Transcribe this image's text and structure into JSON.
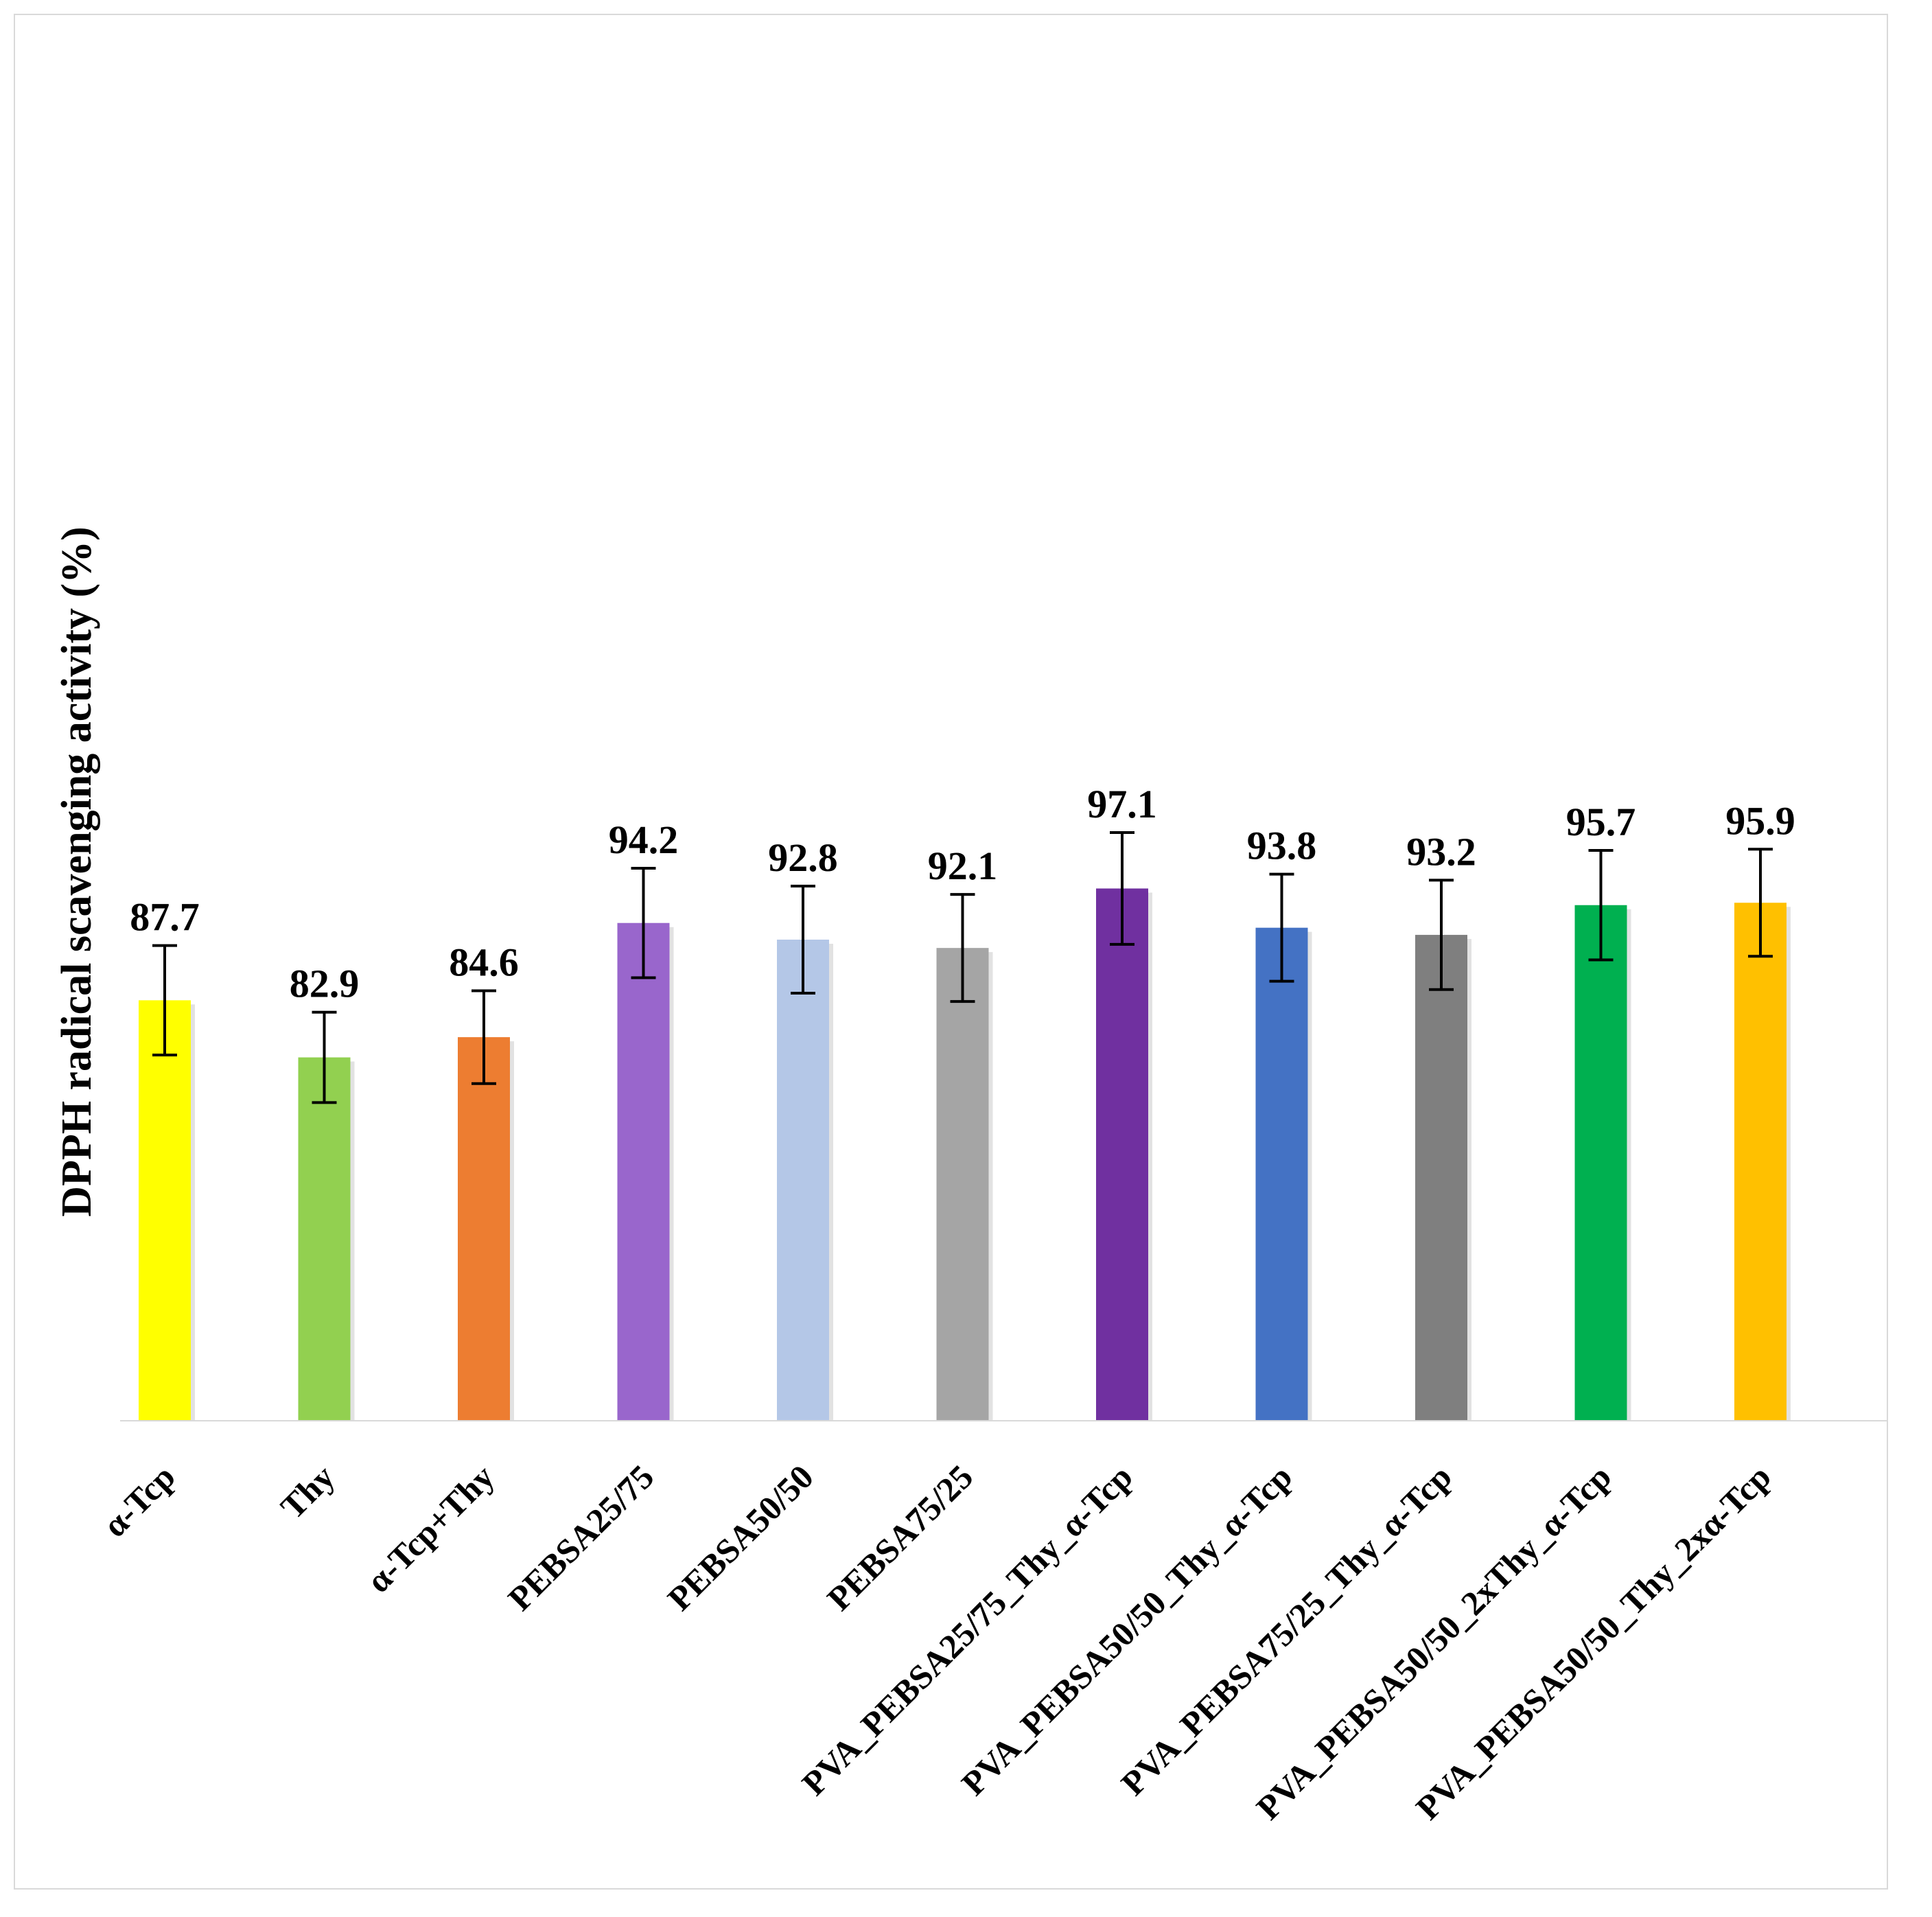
{
  "chart_data": {
    "type": "bar",
    "title": "",
    "xlabel": "",
    "ylabel": "DPPH radical scavenging activity (%)",
    "ylim": [
      0,
      100
    ],
    "grid": false,
    "legend": "none",
    "categories": [
      "α-Tcp",
      "Thy",
      "α-Tcp+Thy",
      "PEBSA25/75",
      "PEBSA50/50",
      "PEBSA75/25",
      "PVA_PEBSA25/75_Thy_α-Tcp",
      "PVA_PEBSA50/50_Thy_α-Tcp",
      "PVA_PEBSA75/25_Thy_α-Tcp",
      "PVA_PEBSA50/50_2xThy_α-Tcp",
      "PVA_PEBSA50/50_Thy_2xα-Tcp"
    ],
    "values": [
      87.7,
      82.9,
      84.6,
      94.2,
      92.8,
      92.1,
      97.1,
      93.8,
      93.2,
      95.7,
      95.9
    ],
    "value_labels": [
      "87.7",
      "82.9",
      "84.6",
      "94.2",
      "92.8",
      "92.1",
      "97.1",
      "93.8",
      "93.2",
      "95.7",
      "95.9"
    ],
    "errors": [
      4.6,
      3.8,
      3.9,
      4.6,
      4.5,
      4.5,
      4.7,
      4.5,
      4.6,
      4.6,
      4.5
    ],
    "colors": [
      "#FFFF00",
      "#92D050",
      "#ED7D31",
      "#9966CC",
      "#B4C7E7",
      "#A5A5A5",
      "#7030A0",
      "#4472C4",
      "#7F7F7F",
      "#00B050",
      "#FFC000"
    ]
  }
}
